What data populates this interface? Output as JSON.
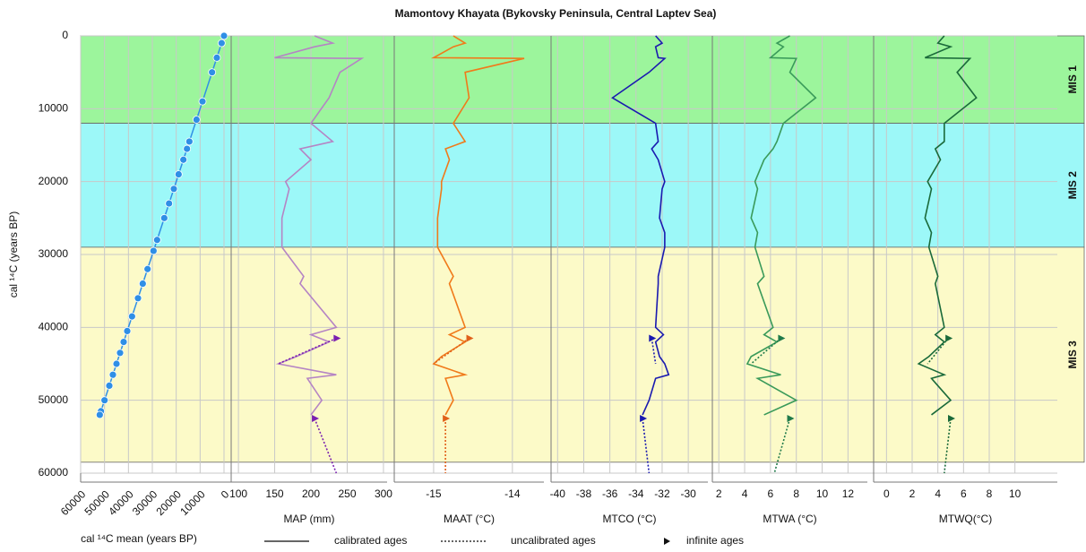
{
  "title": "Mamontovy Khayata (Bykovsky Peninsula, Central Laptev Sea)",
  "ylabel": "cal ¹⁴C (years BP)",
  "ylim": [
    0,
    60000
  ],
  "yticks": [
    0,
    10000,
    20000,
    30000,
    40000,
    50000,
    60000
  ],
  "bands": [
    {
      "label": "MIS 1",
      "from": 0,
      "to": 12000,
      "color": "#9cf59c"
    },
    {
      "label": "MIS 2",
      "from": 12000,
      "to": 29000,
      "color": "#9cf8f8"
    },
    {
      "label": "MIS 3",
      "from": 29000,
      "to": 58500,
      "color": "#fcfac8"
    }
  ],
  "legend": [
    "calibrated ages",
    "uncalibrated ages",
    "infinite ages"
  ],
  "chart_data": [
    {
      "type": "scatter",
      "xlabel": "cal ¹⁴C mean (years BP)",
      "color": "#2f8fe6",
      "xlim": [
        60000,
        -3000
      ],
      "xticks": [
        60000,
        50000,
        40000,
        30000,
        20000,
        10000,
        0
      ],
      "x": [
        0,
        1000,
        3000,
        5000,
        9000,
        11500,
        14500,
        15500,
        17000,
        19000,
        21000,
        23000,
        25000,
        28000,
        29500,
        32000,
        34000,
        36000,
        38500,
        40500,
        42000,
        43500,
        45000,
        46500,
        48000,
        50000,
        51500,
        52000
      ],
      "y": [
        0,
        1000,
        3000,
        5000,
        9000,
        11500,
        14500,
        15500,
        17000,
        19000,
        21000,
        23000,
        25000,
        28000,
        29500,
        32000,
        34000,
        36000,
        38500,
        40500,
        42000,
        43500,
        45000,
        46500,
        48000,
        50000,
        51500,
        52000
      ]
    },
    {
      "type": "line",
      "xlabel": "MAP (mm)",
      "xlim": [
        90,
        305
      ],
      "xticks": [
        100,
        150,
        200,
        250,
        300
      ],
      "series": [
        {
          "style": "solid",
          "color": "#b584c4",
          "ages": [
            0,
            1000,
            1500,
            3000,
            3100,
            5000,
            8500,
            12000,
            14500,
            15500,
            17000,
            20000,
            21000,
            25000,
            27000,
            29000,
            33000,
            34000,
            40000,
            41000,
            42000,
            44000,
            45000,
            46500,
            47000,
            50000,
            52000
          ],
          "values": [
            205,
            230,
            205,
            150,
            270,
            240,
            225,
            200,
            230,
            185,
            200,
            165,
            170,
            160,
            160,
            160,
            190,
            185,
            235,
            200,
            225,
            180,
            155,
            235,
            195,
            215,
            200
          ]
        },
        {
          "style": "dotted",
          "color": "#7a1fb0",
          "ages": [
            41500,
            45000,
            null,
            52500,
            60000
          ],
          "values": [
            235,
            155,
            null,
            205,
            235
          ]
        }
      ]
    },
    {
      "type": "line",
      "xlabel": "MAAT (°C)",
      "xlim": [
        -15.5,
        -13.6
      ],
      "xticks": [
        -15,
        -14
      ],
      "series": [
        {
          "style": "solid",
          "color": "#f07a1a",
          "ages": [
            0,
            1000,
            1500,
            3000,
            3100,
            5000,
            8500,
            12000,
            14500,
            15500,
            17000,
            20000,
            21000,
            25000,
            27000,
            29000,
            33000,
            34000,
            40000,
            41000,
            42000,
            44000,
            45000,
            46500,
            47000,
            50000,
            52000
          ],
          "values": [
            -14.75,
            -14.6,
            -14.75,
            -15.0,
            -13.85,
            -14.6,
            -14.55,
            -14.75,
            -14.6,
            -14.85,
            -14.8,
            -14.9,
            -14.9,
            -14.95,
            -14.95,
            -14.95,
            -14.75,
            -14.8,
            -14.6,
            -14.8,
            -14.6,
            -14.9,
            -15.0,
            -14.6,
            -14.85,
            -14.75,
            -14.85
          ]
        },
        {
          "style": "dotted",
          "color": "#e0601a",
          "ages": [
            41500,
            45000,
            null,
            52500,
            60000
          ],
          "values": [
            -14.55,
            -15.0,
            null,
            -14.85,
            -14.85
          ]
        }
      ]
    },
    {
      "type": "line",
      "xlabel": "MTCO (°C)",
      "xlim": [
        -40.5,
        -28.5
      ],
      "xticks": [
        -40,
        -38,
        -36,
        -34,
        -32,
        -30
      ],
      "series": [
        {
          "style": "solid",
          "color": "#1a1ab0",
          "ages": [
            0,
            1000,
            1500,
            3000,
            3100,
            5000,
            8500,
            12000,
            14500,
            15500,
            17000,
            20000,
            21000,
            25000,
            27000,
            29000,
            33000,
            34000,
            40000,
            41000,
            42000,
            44000,
            45000,
            46500,
            47000,
            50000,
            52000
          ],
          "values": [
            -32.5,
            -32,
            -32.5,
            -32.3,
            -31.8,
            -33,
            -35.8,
            -32.5,
            -32.3,
            -32.8,
            -32.3,
            -31.8,
            -32,
            -32.2,
            -31.8,
            -31.8,
            -32.3,
            -32.3,
            -32.5,
            -31.9,
            -32.5,
            -32.2,
            -31.8,
            -31.5,
            -32.5,
            -33,
            -33.5
          ]
        },
        {
          "style": "dotted",
          "color": "#1a1ab0",
          "ages": [
            41500,
            45000,
            null,
            52500,
            60000
          ],
          "values": [
            -32.8,
            -32.5,
            null,
            -33.5,
            -33
          ]
        }
      ]
    },
    {
      "type": "line",
      "xlabel": "MTWA (°C)",
      "xlim": [
        1.5,
        13.5
      ],
      "xticks": [
        2,
        4,
        6,
        8,
        10,
        12
      ],
      "series": [
        {
          "style": "solid",
          "color": "#3a9a5a",
          "ages": [
            0,
            1000,
            1500,
            3000,
            3100,
            5000,
            8500,
            12000,
            14500,
            15500,
            17000,
            20000,
            21000,
            25000,
            27000,
            29000,
            33000,
            34000,
            40000,
            41000,
            42000,
            44000,
            45000,
            46500,
            47000,
            50000,
            52000
          ],
          "values": [
            7.5,
            6.5,
            7,
            6,
            8,
            7.5,
            9.5,
            7,
            6.5,
            6.2,
            5.5,
            4.8,
            5,
            4.5,
            5,
            4.8,
            5.5,
            5,
            6.2,
            5.5,
            6.5,
            4.5,
            4.2,
            6.8,
            5,
            8,
            5.5
          ]
        },
        {
          "style": "dotted",
          "color": "#1f7a4a",
          "ages": [
            41500,
            45000,
            null,
            52500,
            60000
          ],
          "values": [
            6.8,
            4.5,
            null,
            7.5,
            6.3
          ]
        }
      ]
    },
    {
      "type": "line",
      "xlabel": "MTWQ(°C)",
      "xlim": [
        -1,
        13.3
      ],
      "xticks": [
        0,
        2,
        4,
        6,
        8,
        10
      ],
      "series": [
        {
          "style": "solid",
          "color": "#1a6a3a",
          "ages": [
            0,
            1000,
            1500,
            3000,
            3100,
            5000,
            8500,
            12000,
            14500,
            15500,
            17000,
            20000,
            21000,
            25000,
            27000,
            29000,
            33000,
            34000,
            40000,
            41000,
            42000,
            44000,
            45000,
            46500,
            47000,
            50000,
            52000
          ],
          "values": [
            4.5,
            4,
            5,
            3,
            6.5,
            5.5,
            7,
            4.5,
            4.5,
            3.8,
            4.2,
            3.2,
            3.5,
            3,
            3.5,
            3.3,
            4,
            3.8,
            4.5,
            3.8,
            4.5,
            3.3,
            2.5,
            4.5,
            3.5,
            5,
            3.5
          ]
        },
        {
          "style": "dotted",
          "color": "#1a6a3a",
          "ages": [
            41500,
            45000,
            null,
            52500,
            60000
          ],
          "values": [
            4.8,
            3.2,
            null,
            5,
            4.5
          ]
        }
      ]
    }
  ]
}
